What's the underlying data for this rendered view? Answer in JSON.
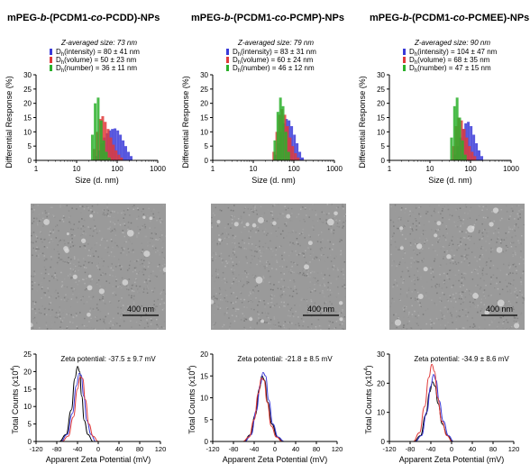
{
  "panels": [
    {
      "title_parts": [
        "mPEG-",
        "b",
        "-(PCDM1-",
        "co",
        "-PCDD)-NPs"
      ],
      "scale_bar": "400 nm"
    },
    {
      "title_parts": [
        "mPEG-",
        "b",
        "-(PCDM1-",
        "co",
        "-PCMP)-NPs"
      ],
      "scale_bar": "400 nm"
    },
    {
      "title_parts": [
        "mPEG-",
        "b",
        "-(PCDM1-",
        "co",
        "-PCMEE)-NPs"
      ],
      "scale_bar": "400 nm"
    }
  ],
  "colors": {
    "intensity": "#3a3ad8",
    "volume": "#e03a3a",
    "number": "#2ab02a",
    "black": "#000000"
  },
  "chart_data": [
    {
      "type": "bar",
      "xscale": "log",
      "xlim": [
        1,
        1000
      ],
      "ylim": [
        0,
        30
      ],
      "xticks": [
        "1",
        "10",
        "100",
        "1000"
      ],
      "yticks": [
        "0",
        "5",
        "10",
        "15",
        "20",
        "25",
        "30"
      ],
      "xlabel": "Size (d. nm)",
      "ylabel": "Differential Response (%)",
      "annotation": "Z-averaged size: 73 nm",
      "series": [
        {
          "name": "Dh(intensity) = 80 ± 41 nm",
          "label_main": "D",
          "label_sub": "h",
          "label_rest": "(intensity) = 80 ± 41 nm",
          "color": "#3a3ad8",
          "x": [
            32,
            38,
            44,
            51,
            60,
            70,
            81,
            94,
            110,
            128,
            149,
            173,
            202,
            235
          ],
          "values": [
            1.5,
            3.5,
            6.0,
            8.0,
            9.5,
            10.5,
            11.0,
            11.2,
            10.5,
            9.0,
            7.0,
            5.0,
            3.0,
            1.5
          ]
        },
        {
          "name": "Dh(volume) = 50 ± 23 nm",
          "label_main": "D",
          "label_sub": "h",
          "label_rest": "(volume) = 50 ± 23 nm",
          "color": "#e03a3a",
          "x": [
            27,
            32,
            38,
            44,
            51,
            60,
            70,
            81,
            94,
            110,
            128
          ],
          "values": [
            4.0,
            10.0,
            14.5,
            15.5,
            13.5,
            11.0,
            8.0,
            5.5,
            3.5,
            2.0,
            1.0
          ]
        },
        {
          "name": "Dh(number) = 36 ± 11 nm",
          "label_main": "D",
          "label_sub": "h",
          "label_rest": "(number) = 36 ± 11 nm",
          "color": "#2ab02a",
          "x": [
            23,
            27,
            32,
            38,
            44,
            51,
            60
          ],
          "values": [
            9.0,
            20.0,
            22.0,
            14.0,
            7.0,
            3.0,
            1.0
          ]
        }
      ]
    },
    {
      "type": "bar",
      "xscale": "log",
      "xlim": [
        1,
        1000
      ],
      "ylim": [
        0,
        30
      ],
      "xticks": [
        "1",
        "10",
        "100",
        "1000"
      ],
      "yticks": [
        "0",
        "5",
        "10",
        "15",
        "20",
        "25",
        "30"
      ],
      "xlabel": "Size (d. nm)",
      "ylabel": "Differential Response (%)",
      "annotation": "Z-averaged size: 79 nm",
      "series": [
        {
          "name": "Dh(intensity) = 83 ± 31 nm",
          "label_main": "D",
          "label_sub": "h",
          "label_rest": "(intensity) = 83 ± 31 nm",
          "color": "#3a3ad8",
          "x": [
            38,
            44,
            51,
            60,
            70,
            81,
            94,
            110,
            128,
            149,
            173
          ],
          "values": [
            2.0,
            6.0,
            10.0,
            13.0,
            14.5,
            14.0,
            12.0,
            9.0,
            6.0,
            3.0,
            1.0
          ]
        },
        {
          "name": "Dh(volume) = 60 ± 24 nm",
          "label_main": "D",
          "label_sub": "h",
          "label_rest": "(volume) = 60 ± 24 nm",
          "color": "#e03a3a",
          "x": [
            32,
            38,
            44,
            51,
            60,
            70,
            81,
            94,
            110,
            128
          ],
          "values": [
            3.0,
            10.0,
            16.0,
            18.0,
            16.0,
            12.0,
            8.0,
            5.0,
            2.5,
            1.0
          ]
        },
        {
          "name": "Dh(number) = 46 ± 12 nm",
          "label_main": "D",
          "label_sub": "h",
          "label_rest": "(number) = 46 ± 12 nm",
          "color": "#2ab02a",
          "x": [
            32,
            38,
            44,
            51,
            60,
            70
          ],
          "values": [
            7.0,
            17.0,
            22.0,
            19.0,
            10.0,
            3.0
          ]
        }
      ]
    },
    {
      "type": "bar",
      "xscale": "log",
      "xlim": [
        1,
        1000
      ],
      "ylim": [
        0,
        30
      ],
      "xticks": [
        "1",
        "10",
        "100",
        "1000"
      ],
      "yticks": [
        "0",
        "5",
        "10",
        "15",
        "20",
        "25",
        "30"
      ],
      "xlabel": "Size (d. nm)",
      "ylabel": "Differential Response (%)",
      "annotation": "Z-averaged size: 90 nm",
      "series": [
        {
          "name": "Dh(intensity) = 104 ± 47 nm",
          "label_main": "D",
          "label_sub": "h",
          "label_rest": "(intensity) = 104 ± 47 nm",
          "color": "#3a3ad8",
          "x": [
            44,
            51,
            60,
            70,
            81,
            94,
            110,
            128,
            149,
            173,
            202
          ],
          "values": [
            2.0,
            5.0,
            8.0,
            11.0,
            13.0,
            13.5,
            12.0,
            9.0,
            6.0,
            3.5,
            1.5
          ]
        },
        {
          "name": "Dh(volume) = 68 ± 35 nm",
          "label_main": "D",
          "label_sub": "h",
          "label_rest": "(volume) = 68 ± 35 nm",
          "color": "#e03a3a",
          "x": [
            38,
            44,
            51,
            60,
            70,
            81,
            94,
            110,
            128
          ],
          "values": [
            5.0,
            12.0,
            15.0,
            14.0,
            11.0,
            8.0,
            5.0,
            3.0,
            1.5
          ]
        },
        {
          "name": "Dh(number) = 47 ± 15 nm",
          "label_main": "D",
          "label_sub": "h",
          "label_rest": "(number) = 47 ± 15 nm",
          "color": "#2ab02a",
          "x": [
            32,
            38,
            44,
            51,
            60,
            70
          ],
          "values": [
            8.0,
            19.0,
            22.0,
            15.0,
            7.0,
            2.0
          ]
        }
      ]
    },
    {
      "type": "line",
      "xlim": [
        -120,
        120
      ],
      "ylim": [
        0,
        25
      ],
      "xticks": [
        "-120",
        "-80",
        "-40",
        "0",
        "40",
        "80",
        "120"
      ],
      "yticks": [
        "0",
        "5",
        "10",
        "15",
        "20",
        "25"
      ],
      "xlabel": "Apparent Zeta Potential (mV)",
      "ylabel_main": "Total Counts (x10",
      "ylabel_sup": "4",
      "ylabel_end": ")",
      "annotation": "Zeta potential: -37.5 ± 9.7 mV",
      "series": [
        {
          "color": "#000000",
          "x": [
            -75,
            -62,
            -52,
            -45,
            -40,
            -36,
            -32,
            -27,
            -20,
            -10
          ],
          "values": [
            0,
            2,
            9,
            18,
            21.5,
            20,
            13,
            6,
            2,
            0
          ]
        },
        {
          "color": "#3a3ad8",
          "x": [
            -72,
            -60,
            -50,
            -42,
            -37,
            -33,
            -28,
            -22,
            -14,
            -5
          ],
          "values": [
            0,
            2,
            8,
            16,
            19.5,
            19,
            13,
            6,
            2,
            0
          ]
        },
        {
          "color": "#e03a3a",
          "x": [
            -70,
            -58,
            -48,
            -40,
            -35,
            -30,
            -25,
            -18,
            -10,
            0
          ],
          "values": [
            0,
            1.5,
            7,
            15,
            18.5,
            18,
            12,
            5,
            1.5,
            0
          ]
        }
      ]
    },
    {
      "type": "line",
      "xlim": [
        -120,
        120
      ],
      "ylim": [
        0,
        20
      ],
      "xticks": [
        "-120",
        "-80",
        "-40",
        "0",
        "40",
        "80",
        "120"
      ],
      "yticks": [
        "0",
        "5",
        "10",
        "15",
        "20"
      ],
      "xlabel": "Apparent Zeta Potential (mV)",
      "ylabel_main": "Total Counts (x10",
      "ylabel_sup": "4",
      "ylabel_end": ")",
      "annotation": "Zeta potential: -21.8 ± 8.5 mV",
      "series": [
        {
          "color": "#000000",
          "x": [
            -60,
            -48,
            -38,
            -30,
            -25,
            -20,
            -14,
            -6,
            5,
            15
          ],
          "values": [
            0,
            1.5,
            6,
            12,
            15,
            14,
            9,
            4,
            1,
            0
          ]
        },
        {
          "color": "#3a3ad8",
          "x": [
            -58,
            -46,
            -36,
            -28,
            -23,
            -18,
            -12,
            -4,
            6,
            18
          ],
          "values": [
            0,
            1.5,
            7,
            13,
            15.8,
            15,
            9.5,
            4,
            1,
            0
          ]
        },
        {
          "color": "#e03a3a",
          "x": [
            -62,
            -50,
            -40,
            -32,
            -26,
            -21,
            -15,
            -7,
            3,
            14
          ],
          "values": [
            0,
            1,
            5,
            11,
            14.5,
            14,
            9,
            3.5,
            1,
            0
          ]
        }
      ]
    },
    {
      "type": "line",
      "xlim": [
        -120,
        120
      ],
      "ylim": [
        0,
        30
      ],
      "xticks": [
        "-120",
        "-80",
        "-40",
        "0",
        "40",
        "80",
        "120"
      ],
      "yticks": [
        "0",
        "10",
        "20",
        "30"
      ],
      "xlabel": "Apparent Zeta Potential (mV)",
      "ylabel_main": "Total Counts (x10",
      "ylabel_sup": "4",
      "ylabel_end": ")",
      "annotation": "Zeta potential: -34.9 ± 8.6 mV",
      "series": [
        {
          "color": "#000000",
          "x": [
            -72,
            -60,
            -50,
            -42,
            -37,
            -32,
            -26,
            -18,
            -8,
            2
          ],
          "values": [
            0,
            2,
            9,
            17,
            20.5,
            19,
            13,
            6,
            2,
            0
          ]
        },
        {
          "color": "#3a3ad8",
          "x": [
            -70,
            -58,
            -48,
            -40,
            -35,
            -30,
            -24,
            -16,
            -6,
            4
          ],
          "values": [
            0,
            2,
            10,
            19,
            23,
            21,
            14,
            7,
            2,
            0
          ]
        },
        {
          "color": "#e03a3a",
          "x": [
            -74,
            -62,
            -52,
            -44,
            -38,
            -33,
            -27,
            -19,
            -9,
            1
          ],
          "values": [
            0,
            3,
            12,
            22,
            26.5,
            24,
            15,
            7,
            2,
            0
          ]
        }
      ]
    }
  ]
}
